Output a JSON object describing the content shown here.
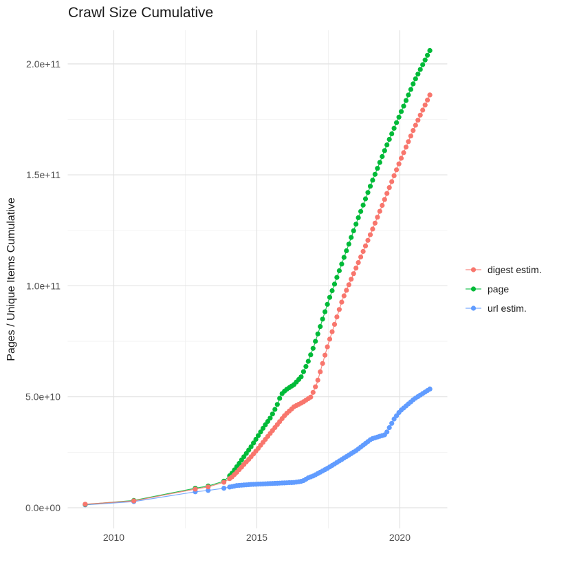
{
  "title": "Crawl Size Cumulative",
  "chart_data": {
    "type": "scatter",
    "title": "Crawl Size Cumulative",
    "xlabel": "",
    "ylabel": "Pages / Unique Items Cumulative",
    "xlim": [
      2008.39,
      2021.66
    ],
    "ylim": [
      -9300000000,
      215140000000
    ],
    "grid": "major+minor",
    "legend_position": "right",
    "x_ticks": [
      {
        "value": 2010,
        "label": "2010"
      },
      {
        "value": 2015,
        "label": "2015"
      },
      {
        "value": 2020,
        "label": "2020"
      }
    ],
    "x_minor_ticks": [
      2012.5,
      2017.5
    ],
    "y_ticks": [
      {
        "value": 0,
        "label": "0.0e+00"
      },
      {
        "value": 50000000000,
        "label": "5.0e+10"
      },
      {
        "value": 100000000000,
        "label": "1.0e+11"
      },
      {
        "value": 150000000000,
        "label": "1.5e+11"
      },
      {
        "value": 200000000000,
        "label": "2.0e+11"
      }
    ],
    "y_minor_ticks": [
      25000000000,
      75000000000,
      125000000000,
      175000000000
    ],
    "point_interval_years": 0.08333,
    "dense_from_year": 2014.05,
    "draw_order": [
      2,
      1,
      0
    ],
    "series": [
      {
        "name": "digest estim.",
        "color": "#F8766D",
        "points": [
          [
            2009.0,
            1600000000.0
          ],
          [
            2010.7,
            3100000000.0
          ],
          [
            2012.85,
            8400000000.0
          ],
          [
            2013.3,
            9400000000.0
          ],
          [
            2013.85,
            11500000000.0
          ],
          [
            2014.1,
            13500000000.0
          ],
          [
            2014.3,
            16000000000.0
          ],
          [
            2014.55,
            19500000000.0
          ],
          [
            2014.8,
            23000000000.0
          ],
          [
            2015.0,
            26000000000.0
          ],
          [
            2015.25,
            30000000000.0
          ],
          [
            2015.5,
            34000000000.0
          ],
          [
            2015.75,
            38000000000.0
          ],
          [
            2016.0,
            42000000000.0
          ],
          [
            2016.3,
            45500000000.0
          ],
          [
            2016.6,
            47500000000.0
          ],
          [
            2016.9,
            50000000000.0
          ],
          [
            2017.1,
            56000000000.0
          ],
          [
            2017.3,
            65000000000.0
          ],
          [
            2017.5,
            74000000000.0
          ],
          [
            2018.0,
            94000000000.0
          ],
          [
            2018.5,
            109000000000.0
          ],
          [
            2019.0,
            124000000000.0
          ],
          [
            2019.5,
            140000000000.0
          ],
          [
            2020.0,
            156000000000.0
          ],
          [
            2020.5,
            171000000000.0
          ],
          [
            2021.05,
            186000000000.0
          ]
        ]
      },
      {
        "name": "page",
        "color": "#00BA38",
        "points": [
          [
            2009.0,
            1500000000.0
          ],
          [
            2010.7,
            3300000000.0
          ],
          [
            2012.85,
            8800000000.0
          ],
          [
            2013.3,
            9800000000.0
          ],
          [
            2013.85,
            12000000000.0
          ],
          [
            2014.1,
            15000000000.0
          ],
          [
            2014.3,
            18500000000.0
          ],
          [
            2014.55,
            23000000000.0
          ],
          [
            2014.8,
            27500000000.0
          ],
          [
            2015.0,
            31500000000.0
          ],
          [
            2015.25,
            36500000000.0
          ],
          [
            2015.5,
            41000000000.0
          ],
          [
            2015.7,
            46000000000.0
          ],
          [
            2015.85,
            51000000000.0
          ],
          [
            2016.0,
            53000000000.0
          ],
          [
            2016.3,
            55500000000.0
          ],
          [
            2016.55,
            59000000000.0
          ],
          [
            2016.8,
            66000000000.0
          ],
          [
            2017.0,
            73000000000.0
          ],
          [
            2017.5,
            93000000000.0
          ],
          [
            2018.0,
            111000000000.0
          ],
          [
            2018.5,
            129000000000.0
          ],
          [
            2019.0,
            146000000000.0
          ],
          [
            2019.5,
            162000000000.0
          ],
          [
            2020.0,
            177000000000.0
          ],
          [
            2020.5,
            192000000000.0
          ],
          [
            2021.05,
            206000000000.0
          ]
        ]
      },
      {
        "name": "url estim.",
        "color": "#619CFF",
        "points": [
          [
            2009.0,
            1300000000.0
          ],
          [
            2010.7,
            2800000000.0
          ],
          [
            2012.85,
            7200000000.0
          ],
          [
            2013.3,
            7800000000.0
          ],
          [
            2013.85,
            8800000000.0
          ],
          [
            2014.3,
            10000000000.0
          ],
          [
            2014.8,
            10500000000.0
          ],
          [
            2015.3,
            10800000000.0
          ],
          [
            2015.8,
            11100000000.0
          ],
          [
            2016.3,
            11400000000.0
          ],
          [
            2016.6,
            12000000000.0
          ],
          [
            2016.8,
            13500000000.0
          ],
          [
            2017.0,
            14500000000.0
          ],
          [
            2017.5,
            18000000000.0
          ],
          [
            2018.0,
            22000000000.0
          ],
          [
            2018.5,
            26000000000.0
          ],
          [
            2019.0,
            31000000000.0
          ],
          [
            2019.5,
            33000000000.0
          ],
          [
            2019.8,
            40000000000.0
          ],
          [
            2020.0,
            43500000000.0
          ],
          [
            2020.5,
            49000000000.0
          ],
          [
            2021.05,
            53500000000.0
          ]
        ]
      }
    ]
  }
}
